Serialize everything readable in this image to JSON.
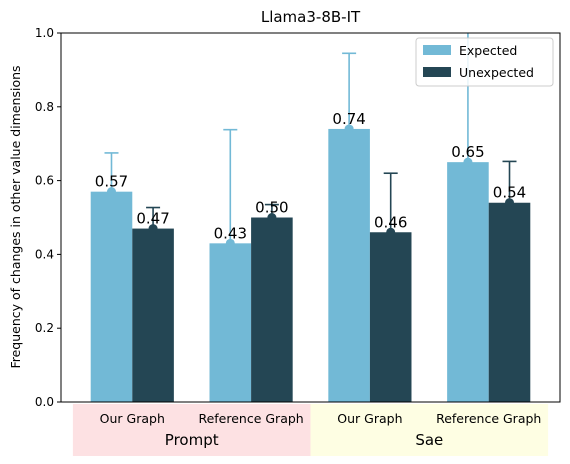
{
  "chart_data": {
    "type": "bar",
    "title": "Llama3-8B-IT",
    "ylabel": "Frequency of changes in other value dimensions",
    "xlabel": "",
    "ylim": [
      0,
      1.0
    ],
    "yticks": [
      "0.0",
      "0.2",
      "0.4",
      "0.6",
      "0.8",
      "1.0"
    ],
    "categories": [
      "Our Graph",
      "Reference Graph",
      "Our Graph",
      "Reference Graph"
    ],
    "groups": [
      {
        "name": "Prompt",
        "color": "#fde1e3",
        "span": [
          0,
          1
        ]
      },
      {
        "name": "Sae",
        "color": "#fefee3",
        "span": [
          2,
          3
        ]
      }
    ],
    "series": [
      {
        "name": "Expected",
        "color": "#72b9d6",
        "values": [
          0.57,
          0.43,
          0.74,
          0.65
        ],
        "labels": [
          "0.57",
          "0.43",
          "0.74",
          "0.65"
        ],
        "err_upper": [
          0.675,
          0.738,
          0.945,
          1.05
        ]
      },
      {
        "name": "Unexpected",
        "color": "#244654",
        "values": [
          0.47,
          0.5,
          0.46,
          0.54
        ],
        "labels": [
          "0.47",
          "0.50",
          "0.46",
          "0.54"
        ],
        "err_upper": [
          0.527,
          0.535,
          0.62,
          0.652
        ]
      }
    ],
    "legend": "top-right",
    "grid": false
  }
}
